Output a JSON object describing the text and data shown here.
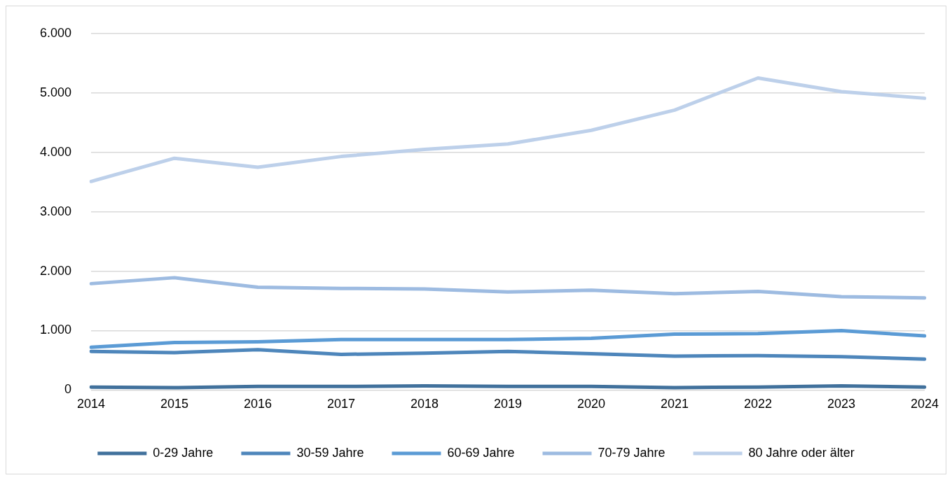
{
  "chart_data": {
    "type": "line",
    "categories": [
      "2014",
      "2015",
      "2016",
      "2017",
      "2018",
      "2019",
      "2020",
      "2021",
      "2022",
      "2023",
      "2024"
    ],
    "series": [
      {
        "name": "0-29 Jahre",
        "color": "#41719c",
        "values": [
          50,
          40,
          60,
          60,
          70,
          60,
          60,
          40,
          50,
          70,
          50
        ]
      },
      {
        "name": "30-59 Jahre",
        "color": "#4e86bb",
        "values": [
          650,
          630,
          680,
          600,
          620,
          650,
          610,
          570,
          580,
          560,
          520
        ]
      },
      {
        "name": "60-69 Jahre",
        "color": "#5b9bd5",
        "values": [
          720,
          800,
          810,
          850,
          850,
          850,
          870,
          940,
          950,
          1000,
          910
        ]
      },
      {
        "name": "70-79 Jahre",
        "color": "#9dbbe1",
        "values": [
          1790,
          1890,
          1730,
          1710,
          1700,
          1650,
          1680,
          1620,
          1660,
          1570,
          1550
        ]
      },
      {
        "name": "80 Jahre oder älter",
        "color": "#bdd0ea",
        "values": [
          3510,
          3900,
          3750,
          3930,
          4050,
          4140,
          4370,
          4710,
          5250,
          5020,
          4910
        ]
      }
    ],
    "ylim": [
      0,
      6000
    ],
    "yticks": [
      {
        "value": 0,
        "label": "0"
      },
      {
        "value": 1000,
        "label": "1.000"
      },
      {
        "value": 2000,
        "label": "2.000"
      },
      {
        "value": 3000,
        "label": "3.000"
      },
      {
        "value": 4000,
        "label": "4.000"
      },
      {
        "value": 5000,
        "label": "5.000"
      },
      {
        "value": 6000,
        "label": "6.000"
      }
    ],
    "grid": "y",
    "legend": "bottom",
    "marker": "none",
    "line_style": "solid"
  }
}
